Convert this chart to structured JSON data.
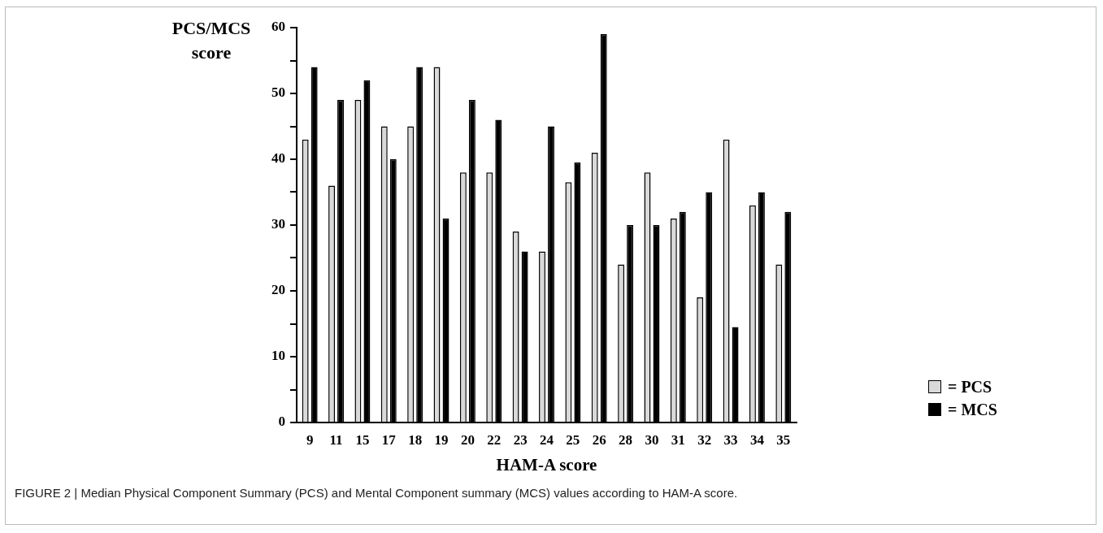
{
  "chart_data": {
    "type": "bar",
    "ylabel": "PCS/MCS score",
    "xlabel": "HAM-A score",
    "categories": [
      "9",
      "11",
      "15",
      "17",
      "18",
      "19",
      "20",
      "22",
      "23",
      "24",
      "25",
      "26",
      "28",
      "30",
      "31",
      "32",
      "33",
      "34",
      "35"
    ],
    "series": [
      {
        "name": "= PCS",
        "color": "#d9d9d9",
        "values": [
          43,
          36,
          49,
          45,
          45,
          54,
          38,
          38,
          29,
          26,
          36.5,
          41,
          24,
          38,
          31,
          19,
          43,
          33,
          24
        ]
      },
      {
        "name": "= MCS",
        "color": "#000000",
        "values": [
          54,
          49,
          52,
          40,
          54,
          31,
          49,
          46,
          26,
          45,
          39.5,
          59,
          30,
          30,
          32,
          35,
          14.5,
          35,
          32
        ]
      }
    ],
    "ylim": [
      0,
      60
    ],
    "yticks": [
      0,
      {
        "value": 5,
        "label": null
      },
      10,
      {
        "value": 15,
        "label": null
      },
      20,
      {
        "value": 25,
        "label": null
      },
      30,
      {
        "value": 35,
        "label": null
      },
      40,
      {
        "value": 45,
        "label": null
      },
      50,
      {
        "value": 55,
        "label": null
      },
      60
    ],
    "grid": false,
    "legend": "bottom right",
    "annotations": [
      "FIGURE 2 | Median Physical Component Summary (PCS) and Mental Component summary (MCS) values according to HAM-A score."
    ]
  }
}
